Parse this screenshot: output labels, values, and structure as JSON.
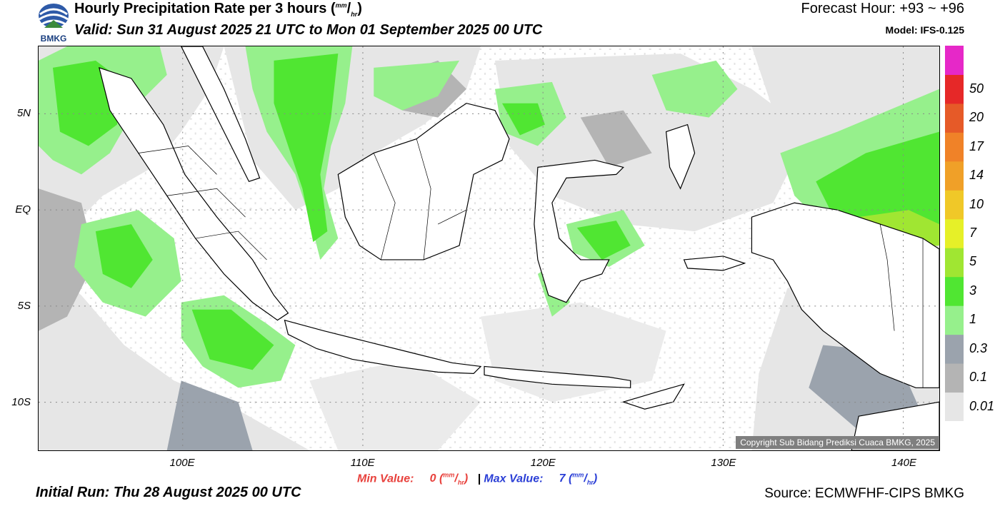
{
  "header": {
    "title": "Hourly Precipitation Rate per 3 hours",
    "title_unit_num": "mm",
    "title_unit_den": "hr",
    "valid": "Valid: Sun 31 August 2025 21 UTC to Mon 01 September 2025 00 UTC",
    "forecast": "Forecast Hour: +93 ~ +96",
    "model": "Model: IFS-0.125",
    "logo_text": "BMKG"
  },
  "map": {
    "lon_range": [
      92,
      142
    ],
    "lat_range": [
      -12.5,
      8.5
    ],
    "lat_labels": [
      {
        "text": "5N",
        "lat": 5
      },
      {
        "text": "EQ",
        "lat": 0
      },
      {
        "text": "5S",
        "lat": -5
      },
      {
        "text": "10S",
        "lat": -10
      }
    ],
    "lon_labels": [
      {
        "text": "100E",
        "lon": 100
      },
      {
        "text": "110E",
        "lon": 110
      },
      {
        "text": "120E",
        "lon": 120
      },
      {
        "text": "130E",
        "lon": 130
      },
      {
        "text": "140E",
        "lon": 140
      }
    ],
    "copyright": "Copyright Sub Bidang Prediksi Cuaca BMKG, 2025"
  },
  "colorbar": {
    "levels": [
      "0.01",
      "0.1",
      "0.3",
      "1",
      "3",
      "5",
      "7",
      "10",
      "14",
      "17",
      "20",
      "50"
    ],
    "colors": [
      "#e6e6e6",
      "#b4b4b4",
      "#9ba3ad",
      "#96f08c",
      "#50e632",
      "#a0e632",
      "#e6f028",
      "#f0c828",
      "#f0a028",
      "#f08228",
      "#e65a28",
      "#e62828",
      "#e628c8"
    ]
  },
  "footer": {
    "min_label": "Min Value:",
    "min_value": "0",
    "separator": "|",
    "max_label": "Max Value:",
    "max_value": "7",
    "unit_num": "mm",
    "unit_den": "hr",
    "initial_run": "Initial Run: Thu 28 August 2025 00 UTC",
    "source": "Source: ECMWFHF-CIPS BMKG"
  }
}
